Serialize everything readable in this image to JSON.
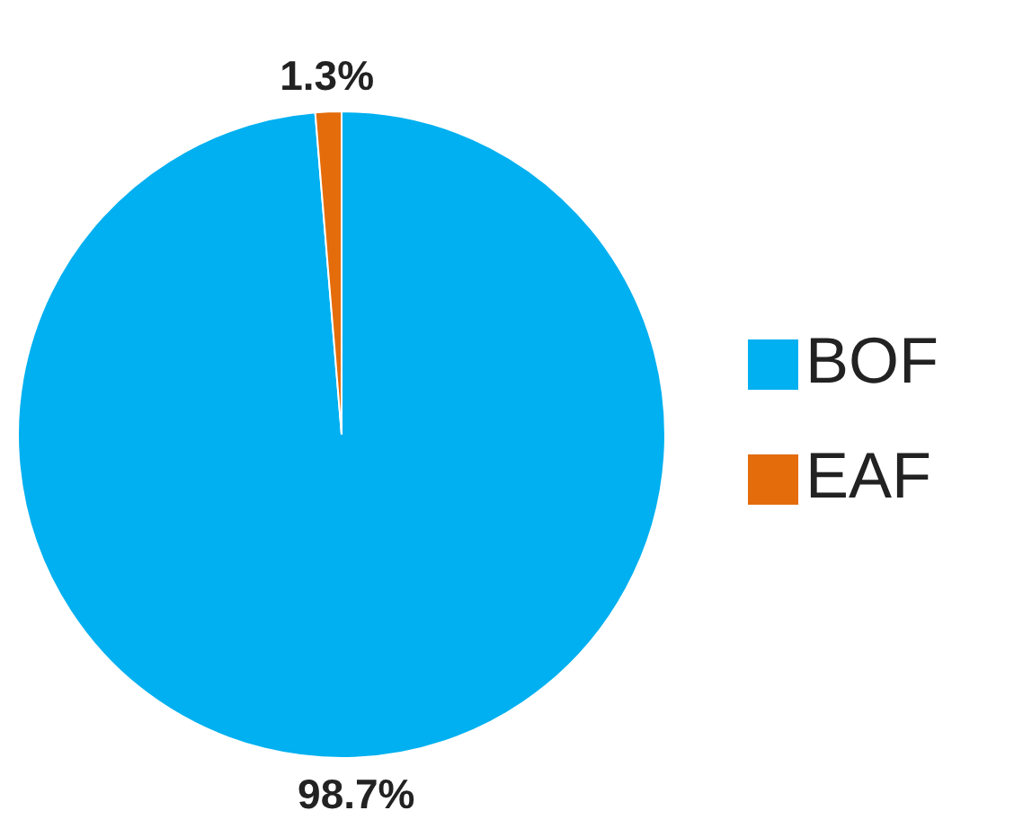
{
  "chart_data": {
    "type": "pie",
    "categories": [
      "BOF",
      "EAF"
    ],
    "values": [
      98.7,
      1.3
    ],
    "colors": [
      "#00b0f0",
      "#e46c0a"
    ],
    "value_labels": [
      "98.7%",
      "1.3%"
    ],
    "legend": "right"
  }
}
